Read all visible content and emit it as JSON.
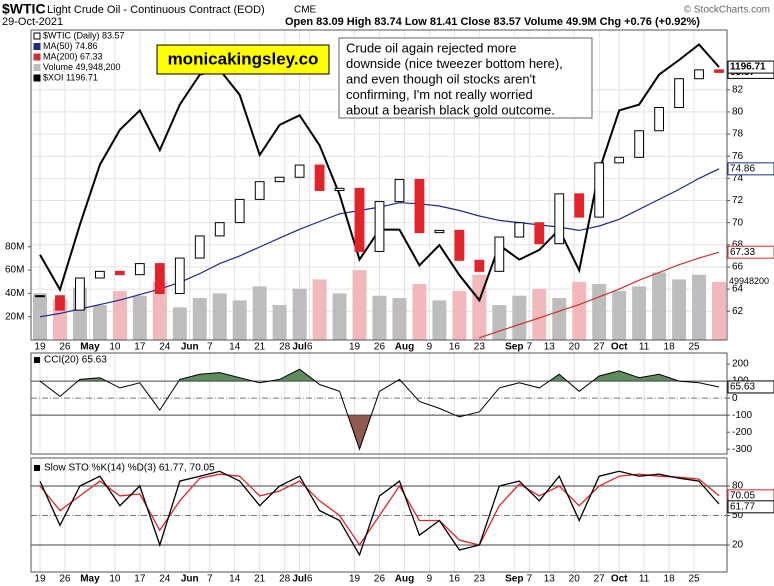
{
  "header": {
    "symbol": "$WTIC",
    "name": "Light Crude Oil - Continuous Contract (EOD)",
    "exchange": "CME",
    "date": "29-Oct-2021",
    "quote": "Open 83.09 High 83.74 Low 81.41 Close 83.57 Volume 49.9M Chg +0.76 (+0.92%)",
    "credit": "© StockCharts.com"
  },
  "annotations": {
    "watermark": "monicakingsley.co",
    "note": [
      "Crude oil again rejected more",
      "downside (nice tweezer bottom here),",
      "and even though oil stocks aren't",
      "confirming, I'm not really worried",
      "about a bearish black gold outcome."
    ]
  },
  "chart_data": [
    {
      "type": "candlestick",
      "x": [
        0,
        4,
        8,
        12,
        16,
        20,
        24,
        28,
        32,
        36,
        40,
        44,
        48,
        52,
        56,
        60,
        64,
        68,
        72,
        76,
        80,
        84,
        88,
        92,
        96,
        100,
        104,
        108,
        112,
        116,
        120,
        124,
        128,
        132,
        136
      ],
      "xlim": [
        -1.8,
        137.6
      ],
      "xticks": [
        {
          "value": 0,
          "label": "19"
        },
        {
          "value": 5,
          "label": "26"
        },
        {
          "value": 10,
          "label": "May"
        },
        {
          "value": 15,
          "label": "10"
        },
        {
          "value": 20,
          "label": "17"
        },
        {
          "value": 25,
          "label": "24"
        },
        {
          "value": 30,
          "label": "Jun"
        },
        {
          "value": 34,
          "label": "7"
        },
        {
          "value": 39,
          "label": "14"
        },
        {
          "value": 44,
          "label": "21"
        },
        {
          "value": 49,
          "label": "28"
        },
        {
          "value": 52,
          "label": "Jul"
        },
        {
          "value": 54,
          "label": "6"
        },
        {
          "value": 63,
          "label": "19"
        },
        {
          "value": 68,
          "label": "26"
        },
        {
          "value": 73,
          "label": "Aug"
        },
        {
          "value": 78,
          "label": "9"
        },
        {
          "value": 83,
          "label": "16"
        },
        {
          "value": 88,
          "label": "23"
        },
        {
          "value": 95,
          "label": "Sep"
        },
        {
          "value": 98,
          "label": "7"
        },
        {
          "value": 102,
          "label": "13"
        },
        {
          "value": 107,
          "label": "20"
        },
        {
          "value": 112,
          "label": "27"
        },
        {
          "value": 116,
          "label": "Oct"
        },
        {
          "value": 121,
          "label": "11"
        },
        {
          "value": 126,
          "label": "18"
        },
        {
          "value": 131,
          "label": "25"
        }
      ],
      "ylim": [
        59.4,
        87.4
      ],
      "yticks": [
        62,
        64,
        66,
        68,
        70,
        72,
        74,
        76,
        78,
        80,
        82
      ],
      "y2lim": [
        915,
        1235
      ],
      "volume_lim": [
        0,
        266
      ],
      "volume_ticks": [
        {
          "value": 20,
          "label": "20M"
        },
        {
          "value": 40,
          "label": "40M"
        },
        {
          "value": 60,
          "label": "60M"
        },
        {
          "value": 80,
          "label": "80M"
        }
      ],
      "volume_tag": "49948200",
      "grid": true,
      "series": [
        {
          "name": "$WTIC (Daily) 83.57",
          "color": "#000000",
          "down_color": "#e0242a",
          "values": [
            63.4,
            62.1,
            65.0,
            65.6,
            65.3,
            66.3,
            63.6,
            66.8,
            68.8,
            70.0,
            72.1,
            73.7,
            74.1,
            75.2,
            72.9,
            73.1,
            67.4,
            71.9,
            73.9,
            69.1,
            69.3,
            66.6,
            65.6,
            68.7,
            69.99,
            68.1,
            72.6,
            70.5,
            75.4,
            75.9,
            78.3,
            80.4,
            83.0,
            83.8,
            83.57
          ]
        },
        {
          "name": "MA(50) 74.86",
          "color": "#1c2a8f",
          "values": [
            61.5,
            61.8,
            62.2,
            62.6,
            63.0,
            63.5,
            64.0,
            64.6,
            65.4,
            66.3,
            67.0,
            67.8,
            68.6,
            69.4,
            70.1,
            70.8,
            71.1,
            71.4,
            71.8,
            71.7,
            71.5,
            71.1,
            70.6,
            70.2,
            70.0,
            69.8,
            69.6,
            69.3,
            69.7,
            70.3,
            71.2,
            72.1,
            73.0,
            74.0,
            74.86
          ]
        },
        {
          "name": "MA(200) 67.33",
          "color": "#d03030",
          "values": [
            null,
            null,
            null,
            null,
            null,
            null,
            null,
            null,
            null,
            null,
            null,
            null,
            null,
            null,
            null,
            null,
            null,
            null,
            null,
            null,
            null,
            null,
            59.6,
            60.2,
            60.8,
            61.4,
            62.0,
            62.6,
            63.3,
            64.0,
            64.8,
            65.5,
            66.2,
            66.8,
            67.33
          ]
        },
        {
          "name": "Volume 49,948,200",
          "color": "#bdbdbd",
          "down_color": "#f2b9bc",
          "axis": "volume",
          "values": [
            40,
            35,
            45,
            30,
            42,
            38,
            50,
            28,
            36,
            40,
            34,
            46,
            30,
            44,
            52,
            40,
            60,
            38,
            36,
            48,
            34,
            42,
            56,
            30,
            38,
            44,
            36,
            50,
            48,
            42,
            46,
            58,
            52,
            56,
            49.9
          ]
        },
        {
          "name": "$XOI 1196.71",
          "color": "#000000",
          "axis": "y2",
          "values": [
            1003,
            967,
            1034,
            1096,
            1132,
            1152,
            1111,
            1158,
            1189,
            1194,
            1168,
            1106,
            1137,
            1147,
            1116,
            1065,
            998,
            1029,
            1029,
            992,
            1013,
            982,
            956,
            1013,
            998,
            1008,
            1029,
            987,
            1090,
            1152,
            1158,
            1189,
            1204,
            1220,
            1196.71
          ]
        }
      ]
    },
    {
      "type": "oscillator",
      "ylim": [
        -328,
        265
      ],
      "yticks": [
        200,
        100,
        0,
        -100,
        -200,
        -300
      ],
      "bands": [
        100,
        -100
      ],
      "midline": 0,
      "fill_colors": [
        "#5e8c5e",
        "#8e5a52"
      ],
      "series": [
        {
          "name": "CCI(20) 65.63",
          "color": "#000000",
          "values": [
            100,
            10,
            110,
            120,
            60,
            90,
            -70,
            110,
            140,
            150,
            120,
            90,
            110,
            170,
            80,
            40,
            -300,
            40,
            110,
            -20,
            -60,
            -110,
            -80,
            60,
            90,
            60,
            140,
            40,
            130,
            160,
            120,
            140,
            100,
            90,
            65.63
          ]
        }
      ]
    },
    {
      "type": "line",
      "ylim": [
        -7.4,
        108.5
      ],
      "yticks": [
        80,
        50,
        20
      ],
      "series": [
        {
          "name": "Slow STO %K(14) %D(3) 61.77,",
          "color": "#000000",
          "values": [
            85,
            40,
            80,
            90,
            60,
            80,
            20,
            85,
            90,
            95,
            85,
            60,
            80,
            90,
            55,
            45,
            10,
            70,
            85,
            30,
            45,
            15,
            20,
            80,
            85,
            65,
            90,
            45,
            90,
            95,
            90,
            92,
            88,
            85,
            61.77
          ]
        },
        {
          "name": "70.05",
          "color": "#e0242a",
          "values": [
            80,
            55,
            70,
            85,
            70,
            72,
            35,
            65,
            88,
            92,
            90,
            70,
            75,
            85,
            65,
            50,
            20,
            50,
            80,
            45,
            45,
            25,
            20,
            60,
            82,
            70,
            80,
            60,
            80,
            90,
            92,
            90,
            89,
            87,
            70.05
          ]
        }
      ]
    }
  ]
}
